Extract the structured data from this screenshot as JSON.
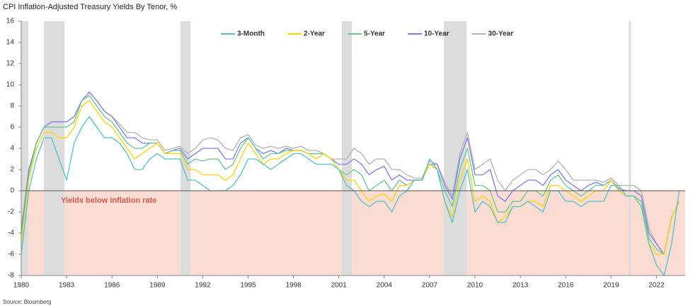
{
  "chart_data": {
    "type": "line",
    "title": "CPI Inflation-Adjusted Treasury Yields By Tenor, %",
    "annotation": "Yields below inflation rate",
    "source": "Source: Bloomberg",
    "xlim": [
      1980,
      2023.9
    ],
    "xticks": [
      1980,
      1983,
      1986,
      1989,
      1992,
      1995,
      1998,
      2001,
      2004,
      2007,
      2010,
      2013,
      2016,
      2019,
      2022
    ],
    "ylim": [
      -8,
      16
    ],
    "yticks": [
      -8,
      -6,
      -4,
      -2,
      0,
      2,
      4,
      6,
      8,
      10,
      12,
      14,
      16
    ],
    "recessions": [
      [
        1980.0,
        1980.47
      ],
      [
        1981.5,
        1982.86
      ],
      [
        1990.53,
        1991.19
      ],
      [
        2001.2,
        2001.86
      ],
      [
        2007.95,
        2009.45
      ],
      [
        2020.17,
        2020.3
      ]
    ],
    "legend": "top",
    "x": [
      1980,
      1980.5,
      1981,
      1981.5,
      1982,
      1982.5,
      1983,
      1983.5,
      1984,
      1984.5,
      1985,
      1985.5,
      1986,
      1986.5,
      1987,
      1987.5,
      1988,
      1988.5,
      1989,
      1989.5,
      1990,
      1990.5,
      1991,
      1991.5,
      1992,
      1992.5,
      1993,
      1993.5,
      1994,
      1994.5,
      1995,
      1995.5,
      1996,
      1996.5,
      1997,
      1997.5,
      1998,
      1998.5,
      1999,
      1999.5,
      2000,
      2000.5,
      2001,
      2001.5,
      2002,
      2002.5,
      2003,
      2003.5,
      2004,
      2004.5,
      2005,
      2005.5,
      2006,
      2006.5,
      2007,
      2007.5,
      2008,
      2008.5,
      2009,
      2009.5,
      2010,
      2010.5,
      2011,
      2011.5,
      2012,
      2012.5,
      2013,
      2013.5,
      2014,
      2014.5,
      2015,
      2015.5,
      2016,
      2016.5,
      2017,
      2017.5,
      2018,
      2018.5,
      2019,
      2019.5,
      2020,
      2020.5,
      2021,
      2021.5,
      2022,
      2022.5,
      2023,
      2023.5
    ],
    "series": [
      {
        "name": "3-Month",
        "color": "#4fc3c8",
        "values": [
          -6,
          0,
          3,
          5,
          5,
          3,
          1,
          4.5,
          6,
          7,
          6,
          5,
          5,
          4.5,
          3.5,
          2,
          2,
          3,
          3.5,
          3,
          3,
          3,
          1,
          1,
          0.5,
          0,
          0,
          0,
          0.5,
          1.5,
          3,
          3,
          2.5,
          2,
          2.5,
          3,
          3.5,
          3.5,
          3,
          2.5,
          2.5,
          2.5,
          2,
          0.5,
          0,
          -1,
          -1.5,
          -1,
          -1,
          -2,
          -0.5,
          0,
          1,
          1,
          3,
          2,
          -1,
          -3,
          0,
          2,
          -2,
          -1,
          -1.5,
          -3,
          -3,
          -1.5,
          -1.5,
          -1,
          -1.5,
          -2,
          0,
          0,
          -1,
          -1,
          -1.5,
          -1,
          -1,
          -1,
          0.5,
          0.5,
          -0.5,
          -0.5,
          -1.5,
          -5,
          -7,
          -8,
          -5,
          0
        ]
      },
      {
        "name": "2-Year",
        "color": "#ffd400",
        "values": [
          -5,
          1,
          4,
          5.5,
          5.5,
          5,
          5,
          6,
          8,
          8.5,
          7.5,
          6.5,
          6,
          5,
          4,
          3,
          3.5,
          4,
          4.5,
          3.5,
          3.5,
          3.5,
          2,
          2,
          1.5,
          1.5,
          1.5,
          1,
          1.5,
          3,
          4.5,
          3.5,
          2.5,
          3,
          3,
          3.5,
          3.8,
          3.8,
          3.5,
          3,
          3.5,
          3,
          2,
          1,
          1,
          0,
          -1,
          -0.5,
          -0.3,
          -1,
          0.5,
          0.5,
          1,
          1,
          2.5,
          2,
          -1,
          -2.5,
          1,
          3,
          -1,
          -0.5,
          -1,
          -3,
          -2.5,
          -1.5,
          -1.5,
          -1,
          -1,
          -1.5,
          0.5,
          0.5,
          0,
          -0.5,
          -1,
          -0.5,
          0,
          0,
          1,
          0,
          -0.5,
          -0.5,
          -1.5,
          -5,
          -6,
          -6,
          -2.5,
          -1
        ]
      },
      {
        "name": "5-Year",
        "color": "#66c78f",
        "values": [
          -4.5,
          1.5,
          4.5,
          6,
          6,
          6,
          6,
          6.5,
          8.5,
          9,
          8,
          7,
          6.5,
          5.5,
          4.5,
          4,
          4,
          4.5,
          4.5,
          3.5,
          3.8,
          3.8,
          2.5,
          3,
          2.8,
          3,
          3,
          2,
          2.5,
          4,
          5,
          4,
          3,
          3.5,
          3.5,
          3.8,
          3.8,
          3.8,
          3.5,
          3.5,
          3.5,
          3,
          2,
          1.5,
          2,
          1.5,
          0,
          0.5,
          1,
          0,
          1,
          0.5,
          1,
          1,
          2.5,
          2,
          0,
          -1.5,
          2,
          4,
          0.5,
          0.5,
          0,
          -2,
          -2,
          -1,
          -1,
          0,
          0,
          -0.5,
          1,
          1.5,
          0.5,
          0,
          -0.5,
          0,
          0.5,
          0.5,
          1,
          0,
          -0.5,
          -0.5,
          -1,
          -4.5,
          -5.5,
          -6,
          -2.5,
          -1
        ]
      },
      {
        "name": "10-Year",
        "color": "#7b7cf0",
        "values": [
          -4,
          2,
          4.5,
          6,
          6.5,
          6.5,
          6.5,
          7,
          8.5,
          9.3,
          8.5,
          7.5,
          7,
          6,
          5,
          5,
          4.5,
          4.5,
          4.5,
          3.5,
          3.8,
          4,
          3,
          3.5,
          4,
          4,
          4,
          3,
          3,
          4.5,
          5,
          4,
          3.5,
          3.8,
          3.5,
          4,
          3.8,
          3.8,
          3.5,
          3.5,
          3.5,
          3,
          2.5,
          2.5,
          3,
          2.5,
          1.5,
          2,
          2.3,
          1,
          1.5,
          1,
          1,
          1,
          2.5,
          2.5,
          0.5,
          -0.8,
          3,
          5,
          1.5,
          1.5,
          2,
          -0.5,
          -1,
          0,
          0.5,
          1,
          1,
          0.5,
          1.5,
          2,
          1,
          0.5,
          0,
          0.5,
          0.8,
          0.5,
          1,
          0.2,
          0,
          0,
          -0.5,
          -4,
          -5,
          -6,
          -2.5,
          -1
        ]
      },
      {
        "name": "30-Year",
        "color": "#b3b3b3",
        "values": [
          -3.5,
          2,
          4.5,
          6,
          6.5,
          6.5,
          6.5,
          7,
          8.5,
          9.3,
          8.5,
          7.5,
          7,
          6.3,
          5.5,
          5.5,
          5,
          4.8,
          4.8,
          3.8,
          4,
          4.2,
          3.5,
          4,
          4.8,
          5,
          4.8,
          4,
          3.8,
          5,
          5.3,
          4.3,
          4,
          4.2,
          4,
          4.2,
          4,
          4.2,
          3.8,
          3.8,
          3.5,
          3,
          3,
          3,
          4,
          3.5,
          2.5,
          3,
          3,
          2,
          2,
          1.5,
          1.2,
          1.2,
          2.8,
          2.5,
          0.8,
          -0.5,
          3.5,
          5.5,
          2,
          2.5,
          3,
          1,
          0,
          1,
          1.5,
          2,
          2,
          1.5,
          2,
          2.8,
          2,
          1,
          1,
          1,
          1,
          0.8,
          1.2,
          0.5,
          0.5,
          0.5,
          0,
          -3.5,
          -5,
          -6,
          -2.5,
          -1
        ]
      }
    ]
  }
}
